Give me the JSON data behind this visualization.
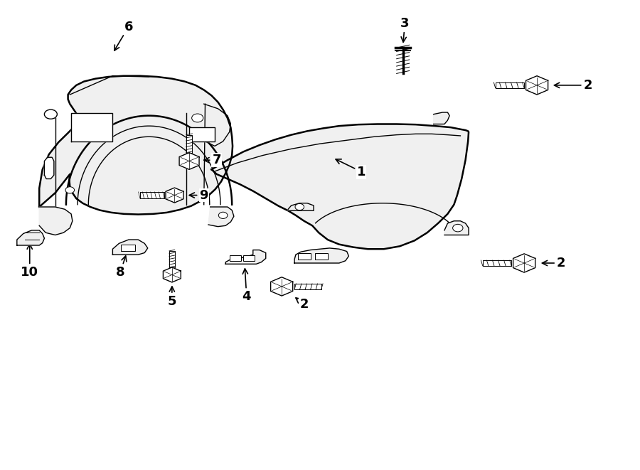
{
  "bg_color": "#ffffff",
  "line_color": "#000000",
  "fill_color": "#f0f0f0",
  "lw_main": 1.8,
  "lw_detail": 1.0,
  "lw_thin": 0.7,
  "label_fontsize": 13,
  "labels": {
    "1": [
      0.565,
      0.595,
      0.535,
      0.635
    ],
    "2a": [
      0.92,
      0.82,
      0.88,
      0.82
    ],
    "2b": [
      0.87,
      0.44,
      0.835,
      0.44
    ],
    "2c": [
      0.49,
      0.385,
      0.465,
      0.385
    ],
    "3": [
      0.63,
      0.92,
      0.63,
      0.89
    ],
    "4": [
      0.39,
      0.37,
      0.38,
      0.43
    ],
    "5": [
      0.27,
      0.36,
      0.27,
      0.42
    ],
    "6": [
      0.2,
      0.94,
      0.175,
      0.89
    ],
    "7": [
      0.33,
      0.66,
      0.3,
      0.66
    ],
    "8": [
      0.185,
      0.425,
      0.193,
      0.475
    ],
    "9": [
      0.31,
      0.585,
      0.282,
      0.585
    ],
    "10": [
      0.052,
      0.435,
      0.052,
      0.49
    ]
  }
}
